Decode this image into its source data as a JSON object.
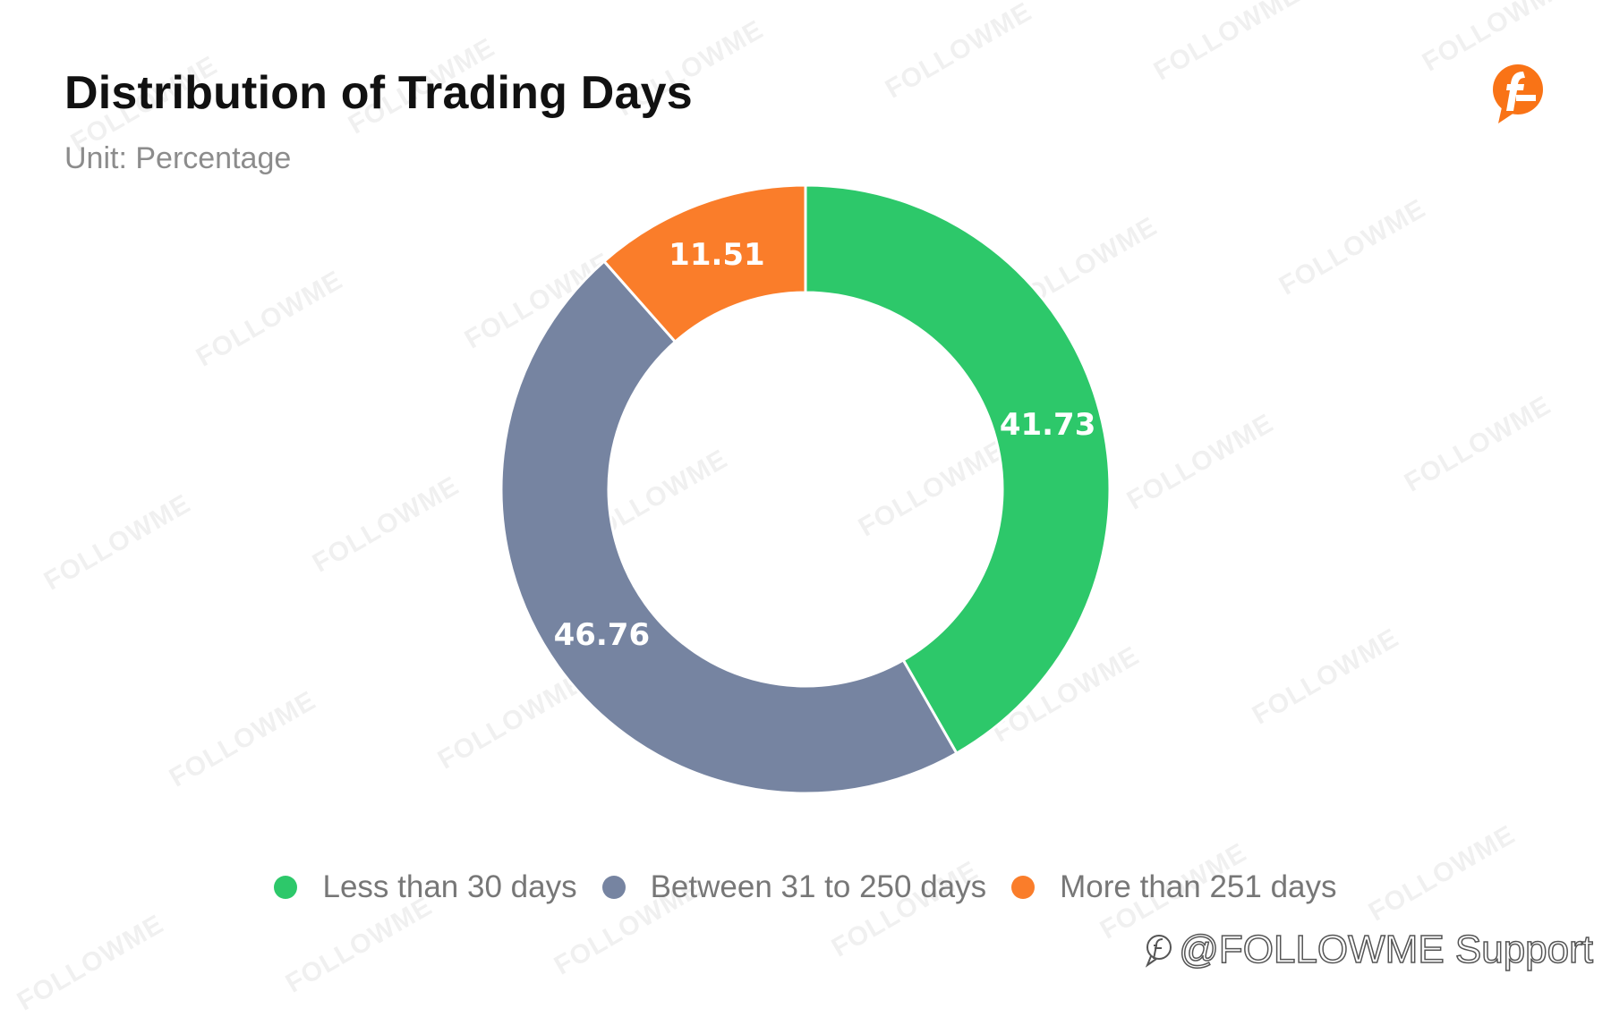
{
  "header": {
    "title": "Distribution of Trading Days",
    "subtitle": "Unit: Percentage"
  },
  "logo": {
    "icon": "followme-logo-icon",
    "color": "#F97316"
  },
  "credit": {
    "text": "@FOLLOWME Support",
    "icon": "followme-outline-icon"
  },
  "watermark": {
    "text": "FOLLOWME"
  },
  "chart_data": {
    "type": "pie",
    "variant": "donut",
    "title": "Distribution of Trading Days",
    "subtitle": "Unit: Percentage",
    "categories": [
      "Less than 30 days",
      "Between 31 to 250 days",
      "More than 251 days"
    ],
    "values": [
      41.73,
      46.76,
      11.51
    ],
    "labels": [
      "41.73",
      "46.76",
      "11.51"
    ],
    "colors": [
      "#2DC86A",
      "#7684A1",
      "#FA7D2A"
    ],
    "start_angle": "12 o'clock",
    "direction": "clockwise",
    "legend_position": "bottom"
  }
}
